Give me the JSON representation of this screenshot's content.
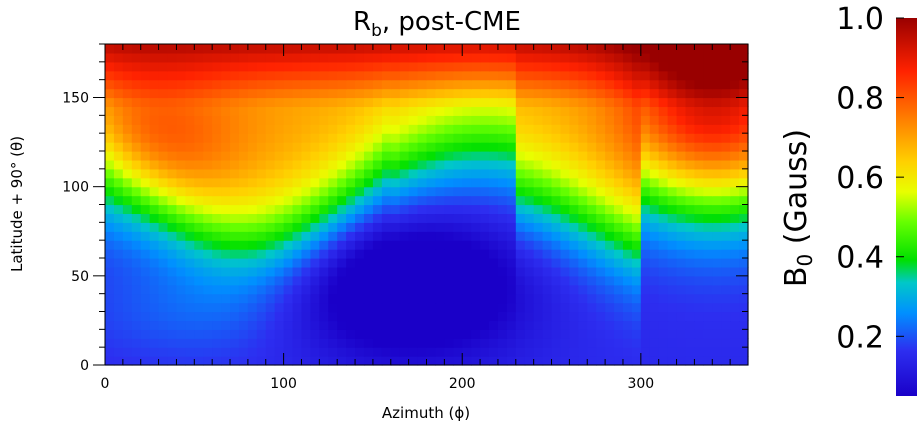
{
  "chart_data": {
    "type": "heatmap",
    "title": "R",
    "title_sub": "b",
    "title_suffix": ", post-CME",
    "xlabel": "Azimuth (ϕ)",
    "ylabel": "Latitude + 90° (θ)",
    "xlim": [
      0,
      360
    ],
    "ylim": [
      0,
      180
    ],
    "x_ticks": [
      0,
      100,
      200,
      300
    ],
    "y_ticks": [
      0,
      50,
      100,
      150
    ],
    "colorbar": {
      "label": "B",
      "label_sub": "0",
      "label_suffix": " (Gauss)",
      "range": [
        0.05,
        1.0
      ],
      "ticks": [
        "0.2",
        "0.4",
        "0.6",
        "0.8",
        "1.0"
      ],
      "tick_values": [
        0.2,
        0.4,
        0.6,
        0.8,
        1.0
      ],
      "colormap": "jet-like: blue-green-yellow-orange-red"
    },
    "regions": [
      {
        "name": "high-latitude red band",
        "theta_range": [
          150,
          180
        ],
        "B0": 0.85
      },
      {
        "name": "northwest orange lobe",
        "phi_range": [
          0,
          70
        ],
        "theta_range": [
          90,
          150
        ],
        "B0": 0.7
      },
      {
        "name": "east red lobe",
        "phi_range": [
          310,
          360
        ],
        "theta_range": [
          100,
          180
        ],
        "B0": 0.9
      },
      {
        "name": "yellow ring",
        "theta_range": [
          120,
          145
        ],
        "B0": 0.5
      },
      {
        "name": "central green band",
        "theta_range": [
          60,
          120
        ],
        "B0": 0.35
      },
      {
        "name": "central blue minimum",
        "phi_range": [
          120,
          220
        ],
        "theta_range": [
          10,
          75
        ],
        "B0": 0.08
      },
      {
        "name": "southern blue-green floor",
        "theta_range": [
          0,
          30
        ],
        "B0": 0.2
      }
    ]
  }
}
